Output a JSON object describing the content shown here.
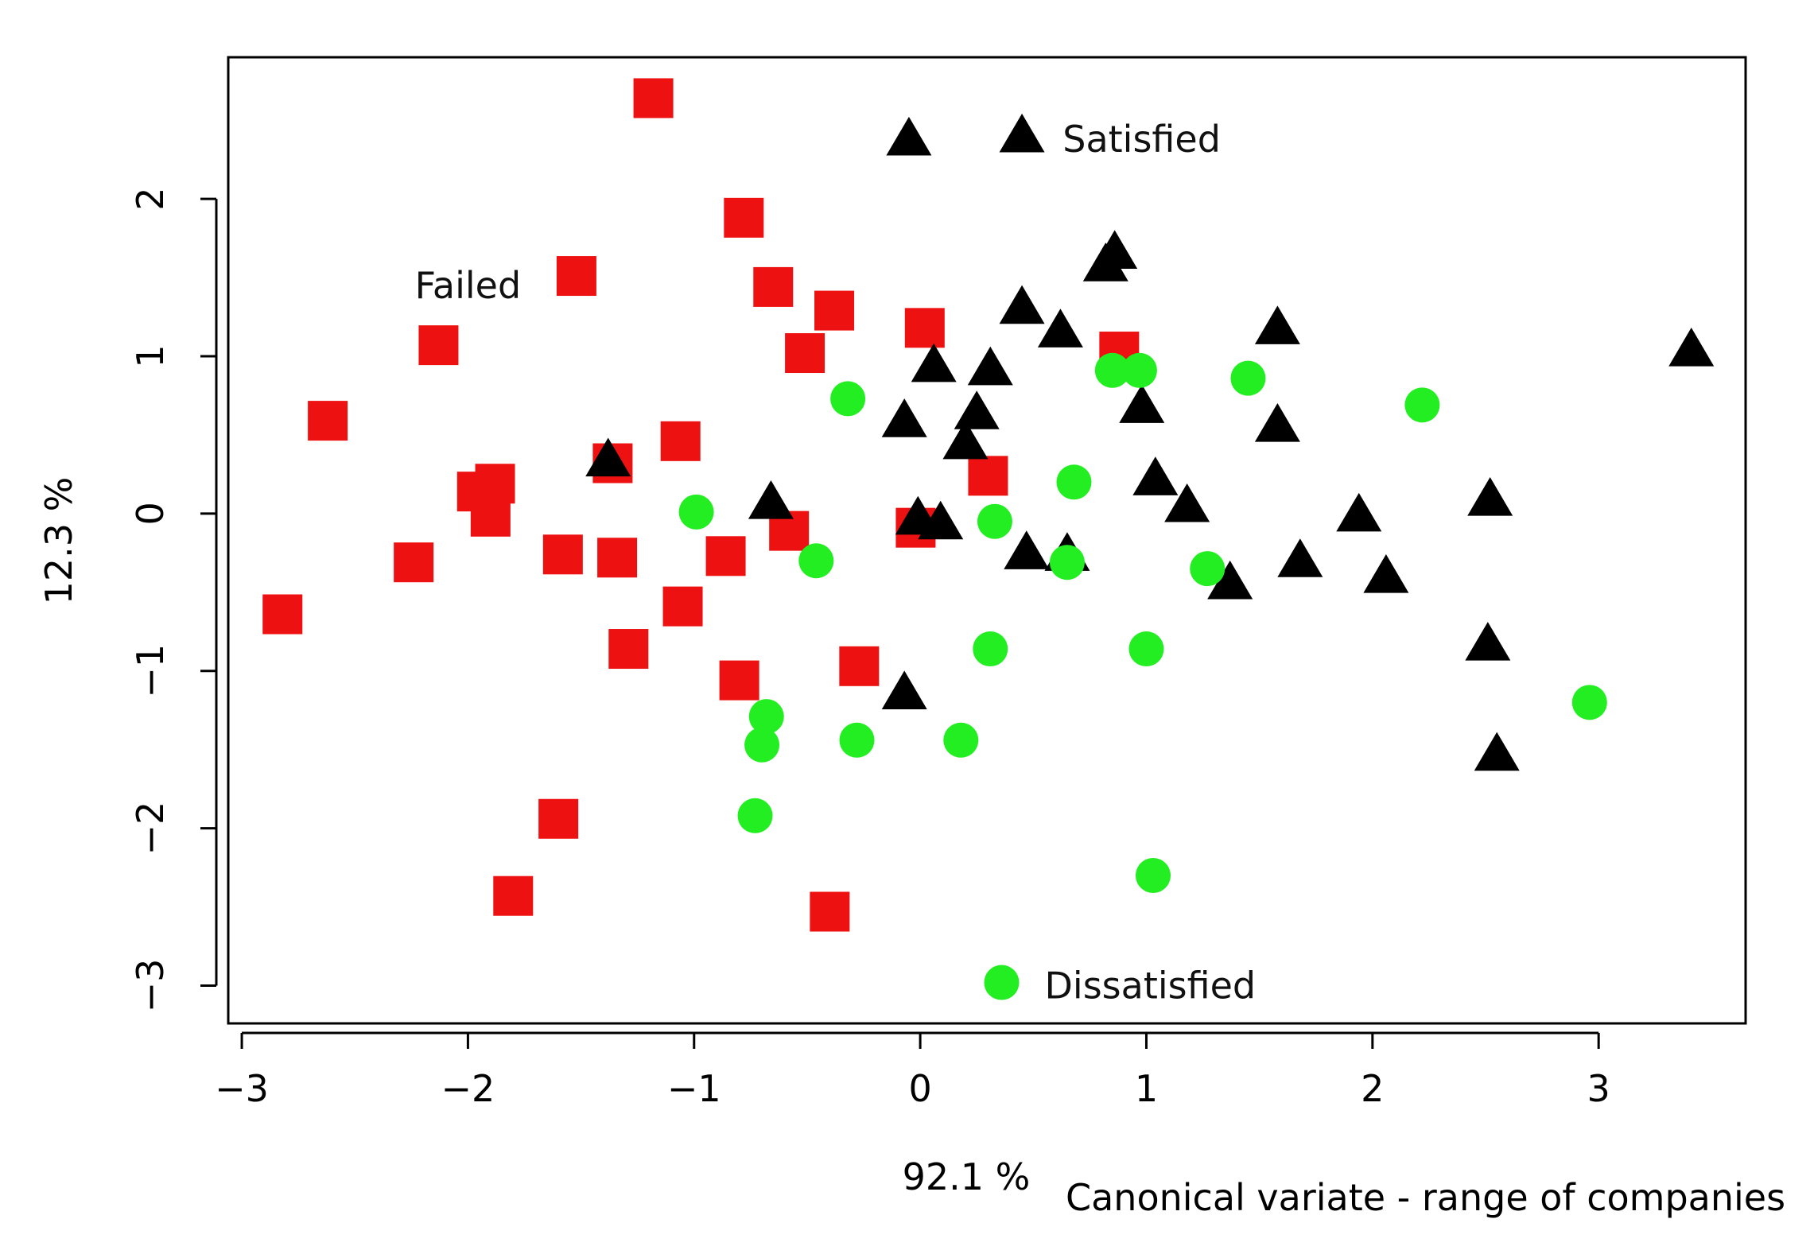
{
  "chart_data": {
    "type": "scatter",
    "title": "",
    "xlabel": "Canonical variate - range of companies",
    "xlabel_percent": "92.1 %",
    "ylabel": "12.3 %",
    "xlim": [
      -3.06,
      3.65
    ],
    "ylim": [
      -3.24,
      2.9
    ],
    "x_ticks": [
      -3,
      -2,
      -1,
      0,
      1,
      2,
      3
    ],
    "x_tick_labels": [
      "−3",
      "−2",
      "−1",
      "0",
      "1",
      "2",
      "3"
    ],
    "y_ticks": [
      -3,
      -2,
      -1,
      0,
      1,
      2
    ],
    "y_tick_labels": [
      "−3",
      "−2",
      "−1",
      "0",
      "1",
      "2"
    ],
    "grid": false,
    "annotations": [
      {
        "text": "Satisfied",
        "x": 0.63,
        "y": 2.38,
        "anchor": "start",
        "key": "satisfied"
      },
      {
        "text": "Failed",
        "x": -2.0,
        "y": 1.45,
        "anchor": "middle",
        "key": "failed"
      },
      {
        "text": "Dissatisfied",
        "x": 0.55,
        "y": -3.0,
        "anchor": "start",
        "key": "dissatisfied"
      }
    ],
    "series": [
      {
        "name": "Failed",
        "marker": "square",
        "color": "#ee1111",
        "x": [
          -1.18,
          -0.78,
          -1.52,
          -0.65,
          -0.38,
          0.02,
          -2.13,
          -0.51,
          0.88,
          -2.62,
          -1.06,
          -1.36,
          -1.88,
          -1.96,
          -1.9,
          -1.58,
          -1.34,
          -0.86,
          -0.58,
          -0.02,
          -2.24,
          -2.82,
          -1.05,
          -1.29,
          -0.8,
          -0.27,
          -1.6,
          -1.8,
          -0.4,
          0.3
        ],
        "y": [
          2.64,
          1.88,
          1.51,
          1.44,
          1.29,
          1.18,
          1.07,
          1.02,
          1.03,
          0.59,
          0.46,
          0.32,
          0.19,
          0.14,
          -0.02,
          -0.26,
          -0.28,
          -0.27,
          -0.11,
          -0.09,
          -0.31,
          -0.64,
          -0.59,
          -0.86,
          -1.06,
          -0.97,
          -1.94,
          -2.43,
          -2.53,
          0.24
        ]
      },
      {
        "name": "Satisfied",
        "marker": "triangle",
        "color": "#000000",
        "x": [
          -0.05,
          0.45,
          0.86,
          0.82,
          0.45,
          0.62,
          1.58,
          0.06,
          0.31,
          3.41,
          0.25,
          -0.07,
          0.98,
          1.58,
          0.2,
          -1.38,
          1.04,
          1.18,
          -0.66,
          0.09,
          -0.01,
          1.94,
          2.52,
          0.47,
          0.65,
          1.68,
          2.06,
          1.37,
          2.51,
          -0.07,
          2.55
        ],
        "y": [
          2.37,
          2.39,
          1.65,
          1.57,
          1.3,
          1.15,
          1.17,
          0.93,
          0.91,
          1.03,
          0.63,
          0.58,
          0.67,
          0.55,
          0.44,
          0.33,
          0.21,
          0.04,
          0.06,
          -0.07,
          -0.04,
          -0.02,
          0.08,
          -0.26,
          -0.27,
          -0.31,
          -0.41,
          -0.45,
          -0.84,
          -1.15,
          -1.54
        ]
      },
      {
        "name": "Dissatisfied",
        "marker": "circle",
        "color": "#22ee22",
        "x": [
          -0.32,
          0.85,
          0.97,
          1.45,
          2.22,
          -0.99,
          0.68,
          0.33,
          -0.46,
          0.65,
          1.27,
          0.31,
          1.0,
          2.96,
          -0.68,
          -0.7,
          -0.28,
          0.18,
          -0.73,
          1.03,
          0.36
        ],
        "y": [
          0.73,
          0.91,
          0.91,
          0.86,
          0.69,
          0.01,
          0.2,
          -0.05,
          -0.3,
          -0.31,
          -0.35,
          -0.86,
          -0.86,
          -1.2,
          -1.29,
          -1.47,
          -1.44,
          -1.44,
          -1.92,
          -2.3,
          -2.98
        ]
      }
    ]
  }
}
